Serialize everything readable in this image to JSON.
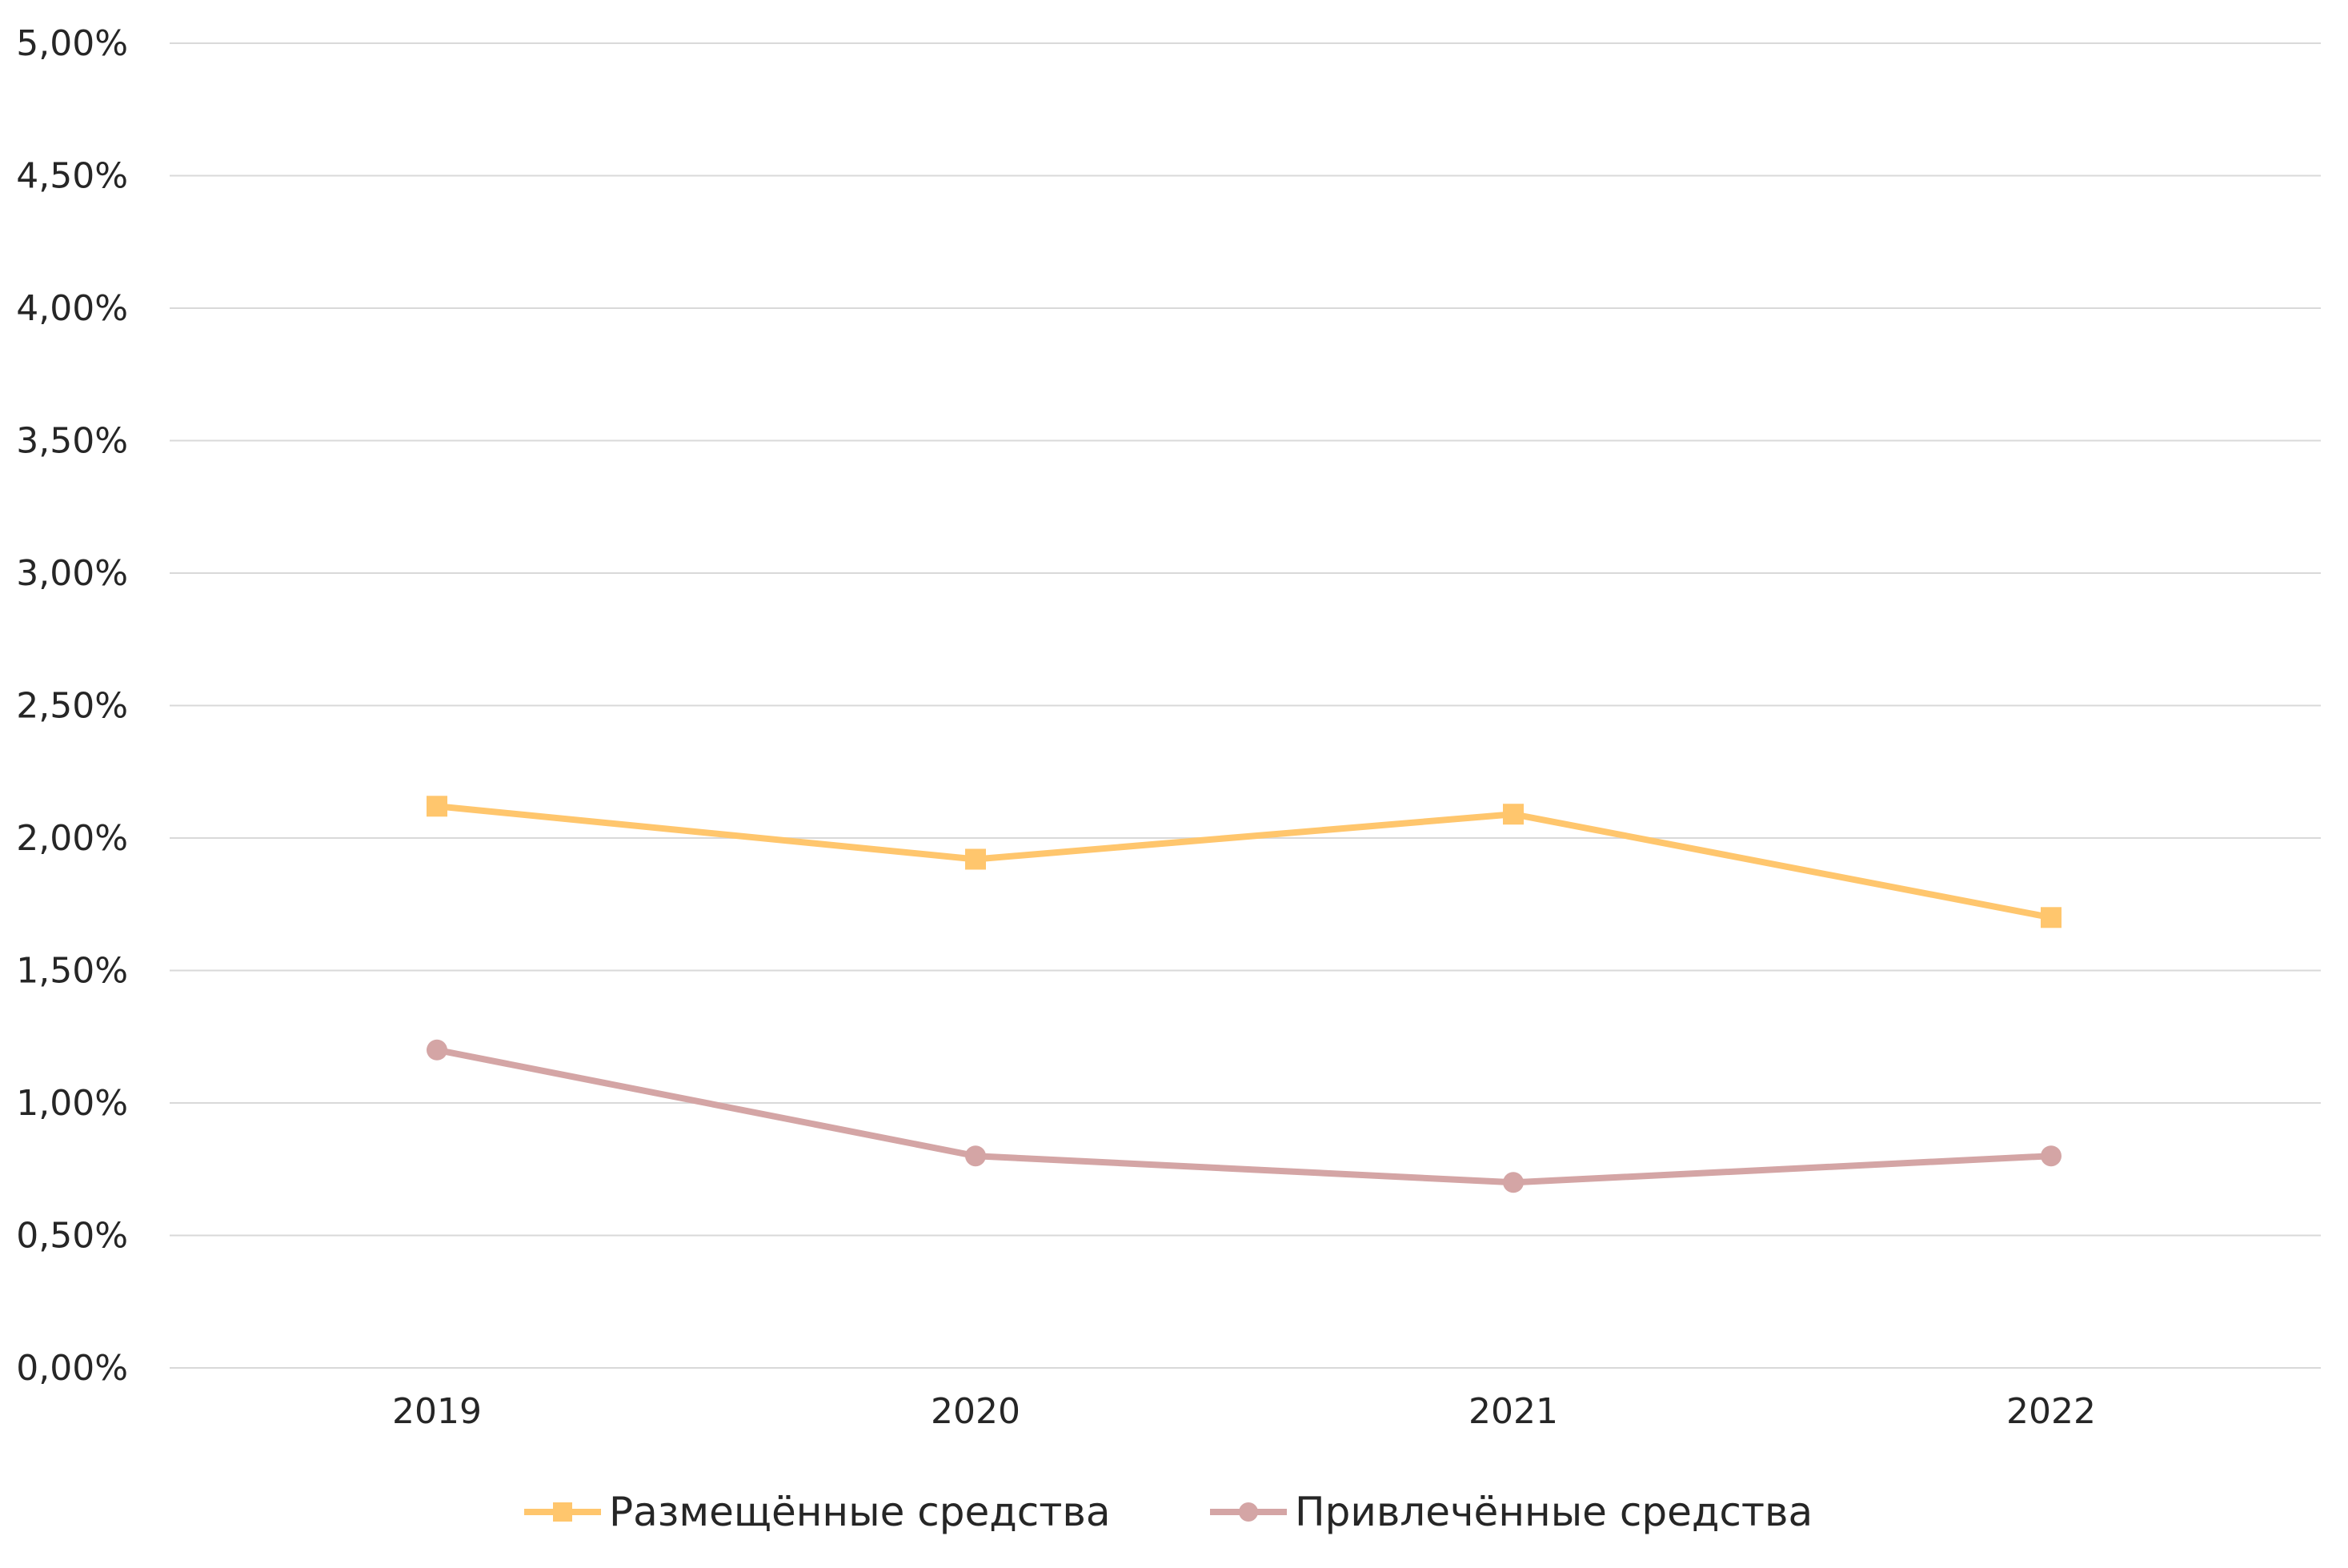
{
  "chart_data": {
    "type": "line",
    "title": "",
    "xlabel": "",
    "ylabel": "",
    "categories": [
      "2019",
      "2020",
      "2021",
      "2022"
    ],
    "ylim": [
      0,
      0.05
    ],
    "yticks": [
      0,
      0.005,
      0.01,
      0.015,
      0.02,
      0.025,
      0.03,
      0.035,
      0.04,
      0.045,
      0.05
    ],
    "ytick_labels": [
      "0,00%",
      "0,50%",
      "1,00%",
      "1,50%",
      "2,00%",
      "2,50%",
      "3,00%",
      "3,50%",
      "4,00%",
      "4,50%",
      "5,00%"
    ],
    "grid": true,
    "legend_position": "bottom",
    "series": [
      {
        "name": "Размещённые средства",
        "values": [
          0.0212,
          0.0192,
          0.0209,
          0.017
        ],
        "color": "#FFC66D",
        "marker": "square"
      },
      {
        "name": "Привлечённые средства",
        "values": [
          0.012,
          0.008,
          0.007,
          0.008
        ],
        "color": "#D4A5A5",
        "marker": "circle"
      }
    ]
  }
}
